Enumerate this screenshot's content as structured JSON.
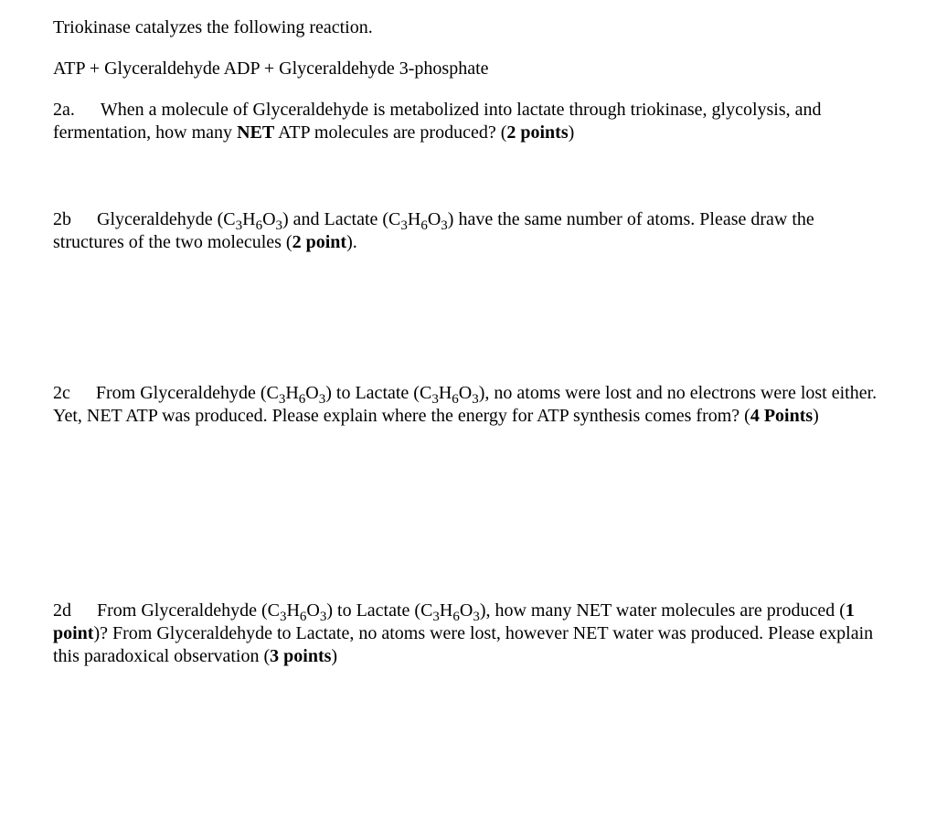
{
  "intro": {
    "line1": "Triokinase catalyzes the following reaction.",
    "reaction": "ATP + Glyceraldehyde ADP + Glyceraldehyde 3-phosphate"
  },
  "q2a": {
    "label": "2a.",
    "text_before": "When a molecule of Glyceraldehyde is metabolized into lactate through triokinase, glycolysis, and fermentation, how many ",
    "bold1": "NET",
    "text_mid": " ATP molecules are produced? (",
    "bold2": "2 points",
    "text_after": ")"
  },
  "q2b": {
    "label": "2b",
    "text1": "Glyceraldehyde (C",
    "sub1": "3",
    "text2": "H",
    "sub2": "6",
    "text3": "O",
    "sub3": "3",
    "text4": ") and Lactate (C",
    "sub4": "3",
    "text5": "H",
    "sub5": "6",
    "text6": "O",
    "sub6": "3",
    "text7": ") have the same number of atoms.  Please draw the structures of the two molecules (",
    "bold1": "2 point",
    "text8": ")."
  },
  "q2c": {
    "label": "2c",
    "text1": "From Glyceraldehyde (C",
    "sub1": "3",
    "text2": "H",
    "sub2": "6",
    "text3": "O",
    "sub3": "3",
    "text4": ") to Lactate (C",
    "sub4": "3",
    "text5": "H",
    "sub5": "6",
    "text6": "O",
    "sub6": "3",
    "text7": "), no atoms were lost and no electrons were lost either.  Yet, NET ATP was produced.  Please explain where the energy for ATP synthesis comes from? (",
    "bold1": "4 Points",
    "text8": ")"
  },
  "q2d": {
    "label": "2d",
    "text1": "From Glyceraldehyde (C",
    "sub1": "3",
    "text2": "H",
    "sub2": "6",
    "text3": "O",
    "sub3": "3",
    "text4": ") to Lactate (C",
    "sub4": "3",
    "text5": "H",
    "sub5": "6",
    "text6": "O",
    "sub6": "3",
    "text7": "), how many NET water molecules are produced (",
    "bold1": "1 point",
    "text8": ")?  From Glyceraldehyde to Lactate, no atoms were lost, however NET water was produced.  Please explain this paradoxical observation (",
    "bold2": "3 points",
    "text9": ")"
  }
}
